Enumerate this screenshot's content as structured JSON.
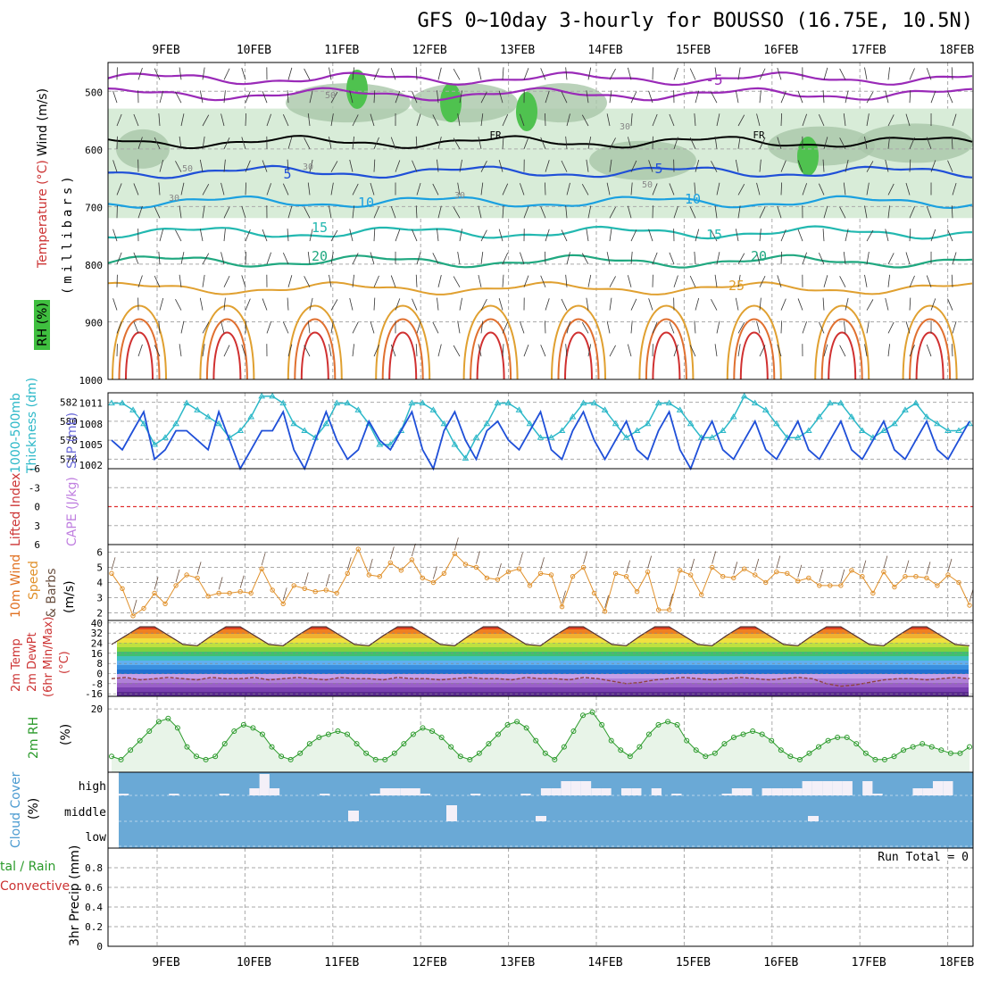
{
  "title": "GFS 0~10day 3-hourly for BOUSSO (16.75E, 10.5N)",
  "dates": [
    "9FEB",
    "10FEB",
    "11FEB",
    "12FEB",
    "13FEB",
    "14FEB",
    "15FEB",
    "16FEB",
    "17FEB",
    "18FEB"
  ],
  "colors": {
    "rh_fill": "#d8ecd8",
    "rh_fill2": "#a9c7a9",
    "rh_fill3": "#4fc24f",
    "wind_blue": "#1f4fd8",
    "slp_cyan": "#2cb8c8",
    "wind10_orange": "#e0902a",
    "rh2m_green": "#2a9a2a",
    "cloud_bg": "#6aa9d6",
    "grid": "#aaaaaa",
    "li_red": "#e03030"
  },
  "panel_labels": {
    "p1_wind": "Wind (m/s)",
    "p1_temp": "Temperature (°C)",
    "p1_rh": "RH (%)",
    "p1_mb": "(millibars)",
    "p2_thick": "1000-500mb",
    "p2_thick2": "Thickness (dm)",
    "p2_slp": "SLP (mb)",
    "p3_li": "Lifted Index",
    "p3_cape": "CAPE (J/kg)",
    "p4_a": "10m Wind",
    "p4_b": "Speed",
    "p4_c": "& Barbs",
    "p4_d": "(m/s)",
    "p5_a": "2m Temp",
    "p5_b": "2m DewPt",
    "p5_c": "(6hr Min/Max)",
    "p5_d": "(°C)",
    "p6_a": "2m RH",
    "p6_b": "(%)",
    "p7_a": "Cloud Cover",
    "p7_b": "(%)",
    "p8_a": "tal / Rain",
    "p8_b": "Convective",
    "p8_c": "3hr Precip (mm)",
    "run_total": "Run Total = 0"
  },
  "contour_labels": [
    "-5",
    "FR",
    "FR",
    "5",
    "5",
    "10",
    "10",
    "15",
    "15",
    "20",
    "20",
    "25",
    "50",
    "50",
    "30",
    "30",
    "30",
    "30",
    "50"
  ],
  "chart_data": [
    {
      "type": "line",
      "panel": "upper-air",
      "title": "Wind / Temperature / RH",
      "ylabel": "(millibars)",
      "yticks": [
        "500",
        "600",
        "700",
        "800",
        "900",
        "1000"
      ],
      "ylim": [
        1000,
        450
      ],
      "isotherms": [
        {
          "name": "-5",
          "level_mb": 480
        },
        {
          "name": "FR",
          "level_mb": 585
        },
        {
          "name": "5",
          "level_mb": 640
        },
        {
          "name": "10",
          "level_mb": 690
        },
        {
          "name": "15",
          "level_mb": 745
        },
        {
          "name": "20",
          "level_mb": 795
        },
        {
          "name": "25",
          "level_mb": 840
        }
      ]
    },
    {
      "type": "line",
      "panel": "thickness-slp",
      "yticks_left": [
        "582",
        "580",
        "578",
        "576"
      ],
      "yticks_right": [
        "1011",
        "1008",
        "1005",
        "1002"
      ],
      "series": [
        {
          "name": "Thickness (dm)",
          "values": [
            578,
            577,
            579,
            581,
            576,
            577,
            579,
            579,
            578,
            577,
            581,
            578,
            575,
            577,
            579,
            579,
            581,
            577,
            575,
            578,
            581,
            578,
            576,
            577,
            580,
            578,
            577,
            579,
            581,
            577,
            575,
            579,
            581,
            578,
            576,
            579,
            580,
            578,
            577,
            579,
            581,
            577,
            576,
            579,
            581,
            578,
            576,
            578,
            580,
            577,
            576,
            579,
            581,
            577,
            575,
            578,
            580,
            577,
            576,
            578,
            580,
            577,
            576,
            578,
            580,
            577,
            576,
            578,
            580,
            577,
            576,
            578,
            580,
            577,
            576,
            578,
            580,
            577,
            576,
            578,
            580
          ]
        },
        {
          "name": "SLP (mb)",
          "values": [
            1011,
            1011,
            1010,
            1008,
            1005,
            1006,
            1008,
            1011,
            1010,
            1009,
            1008,
            1006,
            1007,
            1009,
            1012,
            1012,
            1011,
            1008,
            1007,
            1006,
            1008,
            1011,
            1011,
            1010,
            1008,
            1005,
            1005,
            1007,
            1011,
            1011,
            1010,
            1008,
            1005,
            1003,
            1006,
            1008,
            1011,
            1011,
            1010,
            1008,
            1006,
            1006,
            1007,
            1009,
            1011,
            1011,
            1010,
            1008,
            1006,
            1007,
            1008,
            1011,
            1011,
            1010,
            1008,
            1006,
            1006,
            1007,
            1009,
            1012,
            1011,
            1010,
            1008,
            1006,
            1006,
            1007,
            1009,
            1011,
            1011,
            1009,
            1007,
            1006,
            1007,
            1008,
            1010,
            1011,
            1009,
            1008,
            1007,
            1007,
            1008
          ]
        }
      ]
    },
    {
      "type": "line",
      "panel": "li-cape",
      "yticks": [
        "-6",
        "-3",
        "0",
        "3",
        "6"
      ],
      "series": [
        {
          "name": "Lifted Index",
          "values": [
            0
          ]
        }
      ]
    },
    {
      "type": "line",
      "panel": "wind10m",
      "yticks": [
        "2",
        "3",
        "4",
        "5",
        "6"
      ],
      "ylim": [
        1.5,
        6.5
      ],
      "series": [
        {
          "name": "10m Wind Speed",
          "values": [
            4.6,
            3.6,
            1.8,
            2.3,
            3.3,
            2.6,
            3.8,
            4.5,
            4.3,
            3.1,
            3.3,
            3.3,
            3.4,
            3.3,
            4.9,
            3.5,
            2.6,
            3.8,
            3.6,
            3.4,
            3.5,
            3.3,
            4.6,
            6.2,
            4.5,
            4.4,
            5.3,
            4.8,
            5.5,
            4.3,
            4.0,
            4.6,
            5.9,
            5.2,
            5.0,
            4.3,
            4.2,
            4.7,
            4.9,
            3.8,
            4.6,
            4.5,
            2.4,
            4.4,
            5.0,
            3.3,
            2.1,
            4.6,
            4.4,
            3.4,
            4.7,
            2.2,
            2.2,
            4.8,
            4.5,
            3.2,
            5.0,
            4.4,
            4.3,
            4.9,
            4.5,
            4.0,
            4.7,
            4.6,
            4.1,
            4.3,
            3.8,
            3.8,
            3.8,
            4.8,
            4.4,
            3.3,
            4.7,
            3.7,
            4.4,
            4.4,
            4.3,
            3.8,
            4.5,
            4.0,
            2.5
          ]
        }
      ]
    },
    {
      "type": "area",
      "panel": "temp2m",
      "yticks": [
        "40",
        "32",
        "24",
        "16",
        "8",
        "0",
        "-8",
        "-16"
      ],
      "ylim": [
        -18,
        42
      ],
      "series": [
        {
          "name": "2m Temp",
          "values": [
            23,
            30,
            37,
            37,
            30,
            23,
            22,
            30,
            37,
            37,
            30,
            23,
            22,
            30,
            37,
            37,
            30,
            23,
            22,
            30,
            37,
            37,
            30,
            23,
            22,
            30,
            37,
            37,
            30,
            23,
            22,
            30,
            37,
            37,
            30,
            23,
            22,
            30,
            37,
            37,
            30,
            23,
            22,
            30,
            37,
            37,
            30,
            23,
            22,
            30,
            37,
            37,
            30,
            23,
            22,
            30,
            37,
            37,
            30,
            23,
            22
          ]
        },
        {
          "name": "2m DewPt",
          "values": [
            -4,
            -3,
            -5,
            -4,
            -3,
            -4,
            -5,
            -3,
            -4,
            -4,
            -3,
            -5,
            -4,
            -3,
            -4,
            -5,
            -3,
            -4,
            -4,
            -5,
            -3,
            -4,
            -4,
            -5,
            -4,
            -3,
            -4,
            -4,
            -5,
            -3,
            -4,
            -4,
            -5,
            -3,
            -4,
            -6,
            -8,
            -7,
            -5,
            -4,
            -3,
            -4,
            -5,
            -4,
            -3,
            -4,
            -5,
            -4,
            -3,
            -4,
            -8,
            -10,
            -9,
            -7,
            -5,
            -4,
            -4,
            -5,
            -4,
            -3,
            -4
          ]
        }
      ]
    },
    {
      "type": "line",
      "panel": "rh2m",
      "yticks": [
        "20"
      ],
      "ylim": [
        0,
        24
      ],
      "series": [
        {
          "name": "2m RH",
          "values": [
            5,
            4,
            7,
            10,
            13,
            16,
            17,
            14,
            8,
            5,
            4,
            5,
            9,
            13,
            15,
            14,
            12,
            8,
            5,
            4,
            6,
            9,
            11,
            12,
            13,
            12,
            9,
            6,
            4,
            4,
            6,
            9,
            12,
            14,
            13,
            11,
            8,
            5,
            4,
            6,
            9,
            12,
            15,
            16,
            14,
            10,
            6,
            4,
            8,
            13,
            18,
            19,
            15,
            10,
            7,
            5,
            8,
            12,
            15,
            16,
            15,
            10,
            7,
            5,
            6,
            9,
            11,
            12,
            13,
            12,
            10,
            7,
            5,
            4,
            6,
            8,
            10,
            11,
            11,
            9,
            6,
            4,
            4,
            5,
            7,
            8,
            9,
            8,
            7,
            6,
            6,
            8
          ]
        }
      ]
    },
    {
      "type": "bar",
      "panel": "cloud",
      "yticks": [
        "high",
        "middle",
        "low"
      ],
      "series": [
        {
          "name": "high cloud",
          "values": [
            0,
            0,
            0,
            0,
            0,
            0,
            0,
            0,
            0,
            0,
            0,
            0,
            0,
            1,
            3,
            1,
            0,
            0,
            0,
            0,
            0,
            0,
            0,
            0,
            0,
            0,
            1,
            1,
            1,
            1,
            0,
            0,
            0,
            0,
            0,
            0,
            0,
            0,
            0,
            0,
            0,
            0,
            1,
            1,
            2,
            2,
            2,
            1,
            1,
            0,
            1,
            1,
            0,
            1,
            0,
            0,
            0,
            0,
            0,
            0,
            0,
            1,
            1,
            0,
            1,
            1,
            1,
            1,
            2,
            2,
            2,
            2,
            2,
            0,
            2,
            0,
            0,
            0,
            0,
            1,
            1,
            2,
            2,
            0,
            0
          ]
        }
      ]
    },
    {
      "type": "line",
      "panel": "precip",
      "yticks": [
        "0",
        "0.2",
        "0.4",
        "0.6",
        "0.8"
      ],
      "ylim": [
        0,
        1
      ],
      "series": [
        {
          "name": "3hr Precip",
          "values": [
            0
          ]
        }
      ]
    }
  ]
}
